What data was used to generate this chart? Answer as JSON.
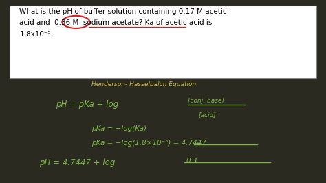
{
  "bg_color": "#2a2a20",
  "text_box_bg": "#ffffff",
  "text_box_color": "#000000",
  "green_color": "#7a9a40",
  "yellow_green": "#b8b830",
  "title_text_line1": "What is the pH of buffer solution containing 0.17 M acetic",
  "title_text_line2": "acid and  0.36 M  sodium acetate? Ka of acetic acid is",
  "title_text_line3": "1.8x10⁻⁵.",
  "henderson_title": "Henderson- Hasselbalch Equation",
  "figsize": [
    4.74,
    2.66
  ],
  "dpi": 100
}
